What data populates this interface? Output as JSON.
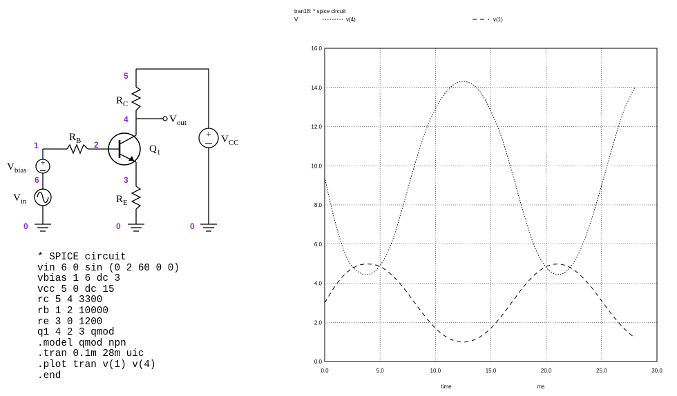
{
  "schematic": {
    "nodes": {
      "n1": "1",
      "n2": "2",
      "n3": "3",
      "n4": "4",
      "n5": "5",
      "n6": "6",
      "gnd1": "0",
      "gnd2": "0",
      "gnd3": "0"
    },
    "labels": {
      "rb_main": "R",
      "rb_sub": "B",
      "rc_main": "R",
      "rc_sub": "C",
      "re_main": "R",
      "re_sub": "E",
      "q1_main": "Q",
      "q1_sub": "1",
      "vbias_main": "V",
      "vbias_sub": "bias",
      "vin_main": "V",
      "vin_sub": "in",
      "vcc_main": "V",
      "vcc_sub": "CC",
      "vout_main": "V",
      "vout_sub": "out"
    }
  },
  "netlist": [
    "* SPICE circuit",
    "vin 6 0 sin (0 2 60 0 0)",
    "vbias 1 6 dc 3",
    "vcc 5 0 dc 15",
    "rc 5 4 3300",
    "rb 1 2 10000",
    "re 3 0 1200",
    "q1 4 2 3 qmod",
    ".model qmod npn",
    ".tran 0.1m 28m uic",
    ".plot tran v(1) v(4)",
    ".end"
  ],
  "plot_header": {
    "title": "tran18: * spice circuit",
    "yunit": "V",
    "legend_v4": "v(4)",
    "legend_v1": "v(1)"
  },
  "chart_data": {
    "type": "line",
    "title": "tran18: * spice circuit",
    "xlabel": "time",
    "xunit": "ms",
    "ylabel": "V",
    "xlim": [
      0,
      30
    ],
    "ylim": [
      0,
      16
    ],
    "xticks": [
      "0.0",
      "5.0",
      "10.0",
      "15.0",
      "20.0",
      "25.0",
      "30.0"
    ],
    "yticks": [
      "0.0",
      "2.0",
      "4.0",
      "6.0",
      "8.0",
      "10.0",
      "12.0",
      "14.0",
      "16.0"
    ],
    "grid": true,
    "legend": "top",
    "series": [
      {
        "name": "v(4)",
        "style": "dotted",
        "x": [
          0,
          1,
          2,
          3,
          4,
          5,
          6,
          7,
          8,
          9,
          10,
          11,
          12,
          13,
          14,
          15,
          16,
          17,
          18,
          19,
          20,
          21,
          22,
          23,
          24,
          25,
          26,
          27,
          28
        ],
        "y": [
          9.4,
          7.0,
          5.3,
          4.6,
          4.45,
          4.9,
          6.0,
          7.8,
          9.8,
          11.6,
          12.9,
          13.8,
          14.25,
          14.25,
          13.8,
          12.8,
          11.4,
          9.5,
          7.5,
          5.8,
          4.8,
          4.45,
          4.7,
          5.6,
          7.1,
          9.0,
          11.0,
          12.8,
          14.0
        ]
      },
      {
        "name": "v(1)",
        "style": "dashed",
        "x": [
          0,
          1,
          2,
          3,
          4,
          5,
          6,
          7,
          8,
          9,
          10,
          11,
          12,
          13,
          14,
          15,
          16,
          17,
          18,
          19,
          20,
          21,
          22,
          23,
          24,
          25,
          26,
          27,
          28
        ],
        "y": [
          3.0,
          3.9,
          4.55,
          4.9,
          4.98,
          4.85,
          4.45,
          3.85,
          3.1,
          2.35,
          1.7,
          1.25,
          1.02,
          1.02,
          1.25,
          1.7,
          2.35,
          3.1,
          3.85,
          4.45,
          4.85,
          4.98,
          4.85,
          4.45,
          3.85,
          3.1,
          2.35,
          1.7,
          1.2
        ]
      }
    ]
  }
}
